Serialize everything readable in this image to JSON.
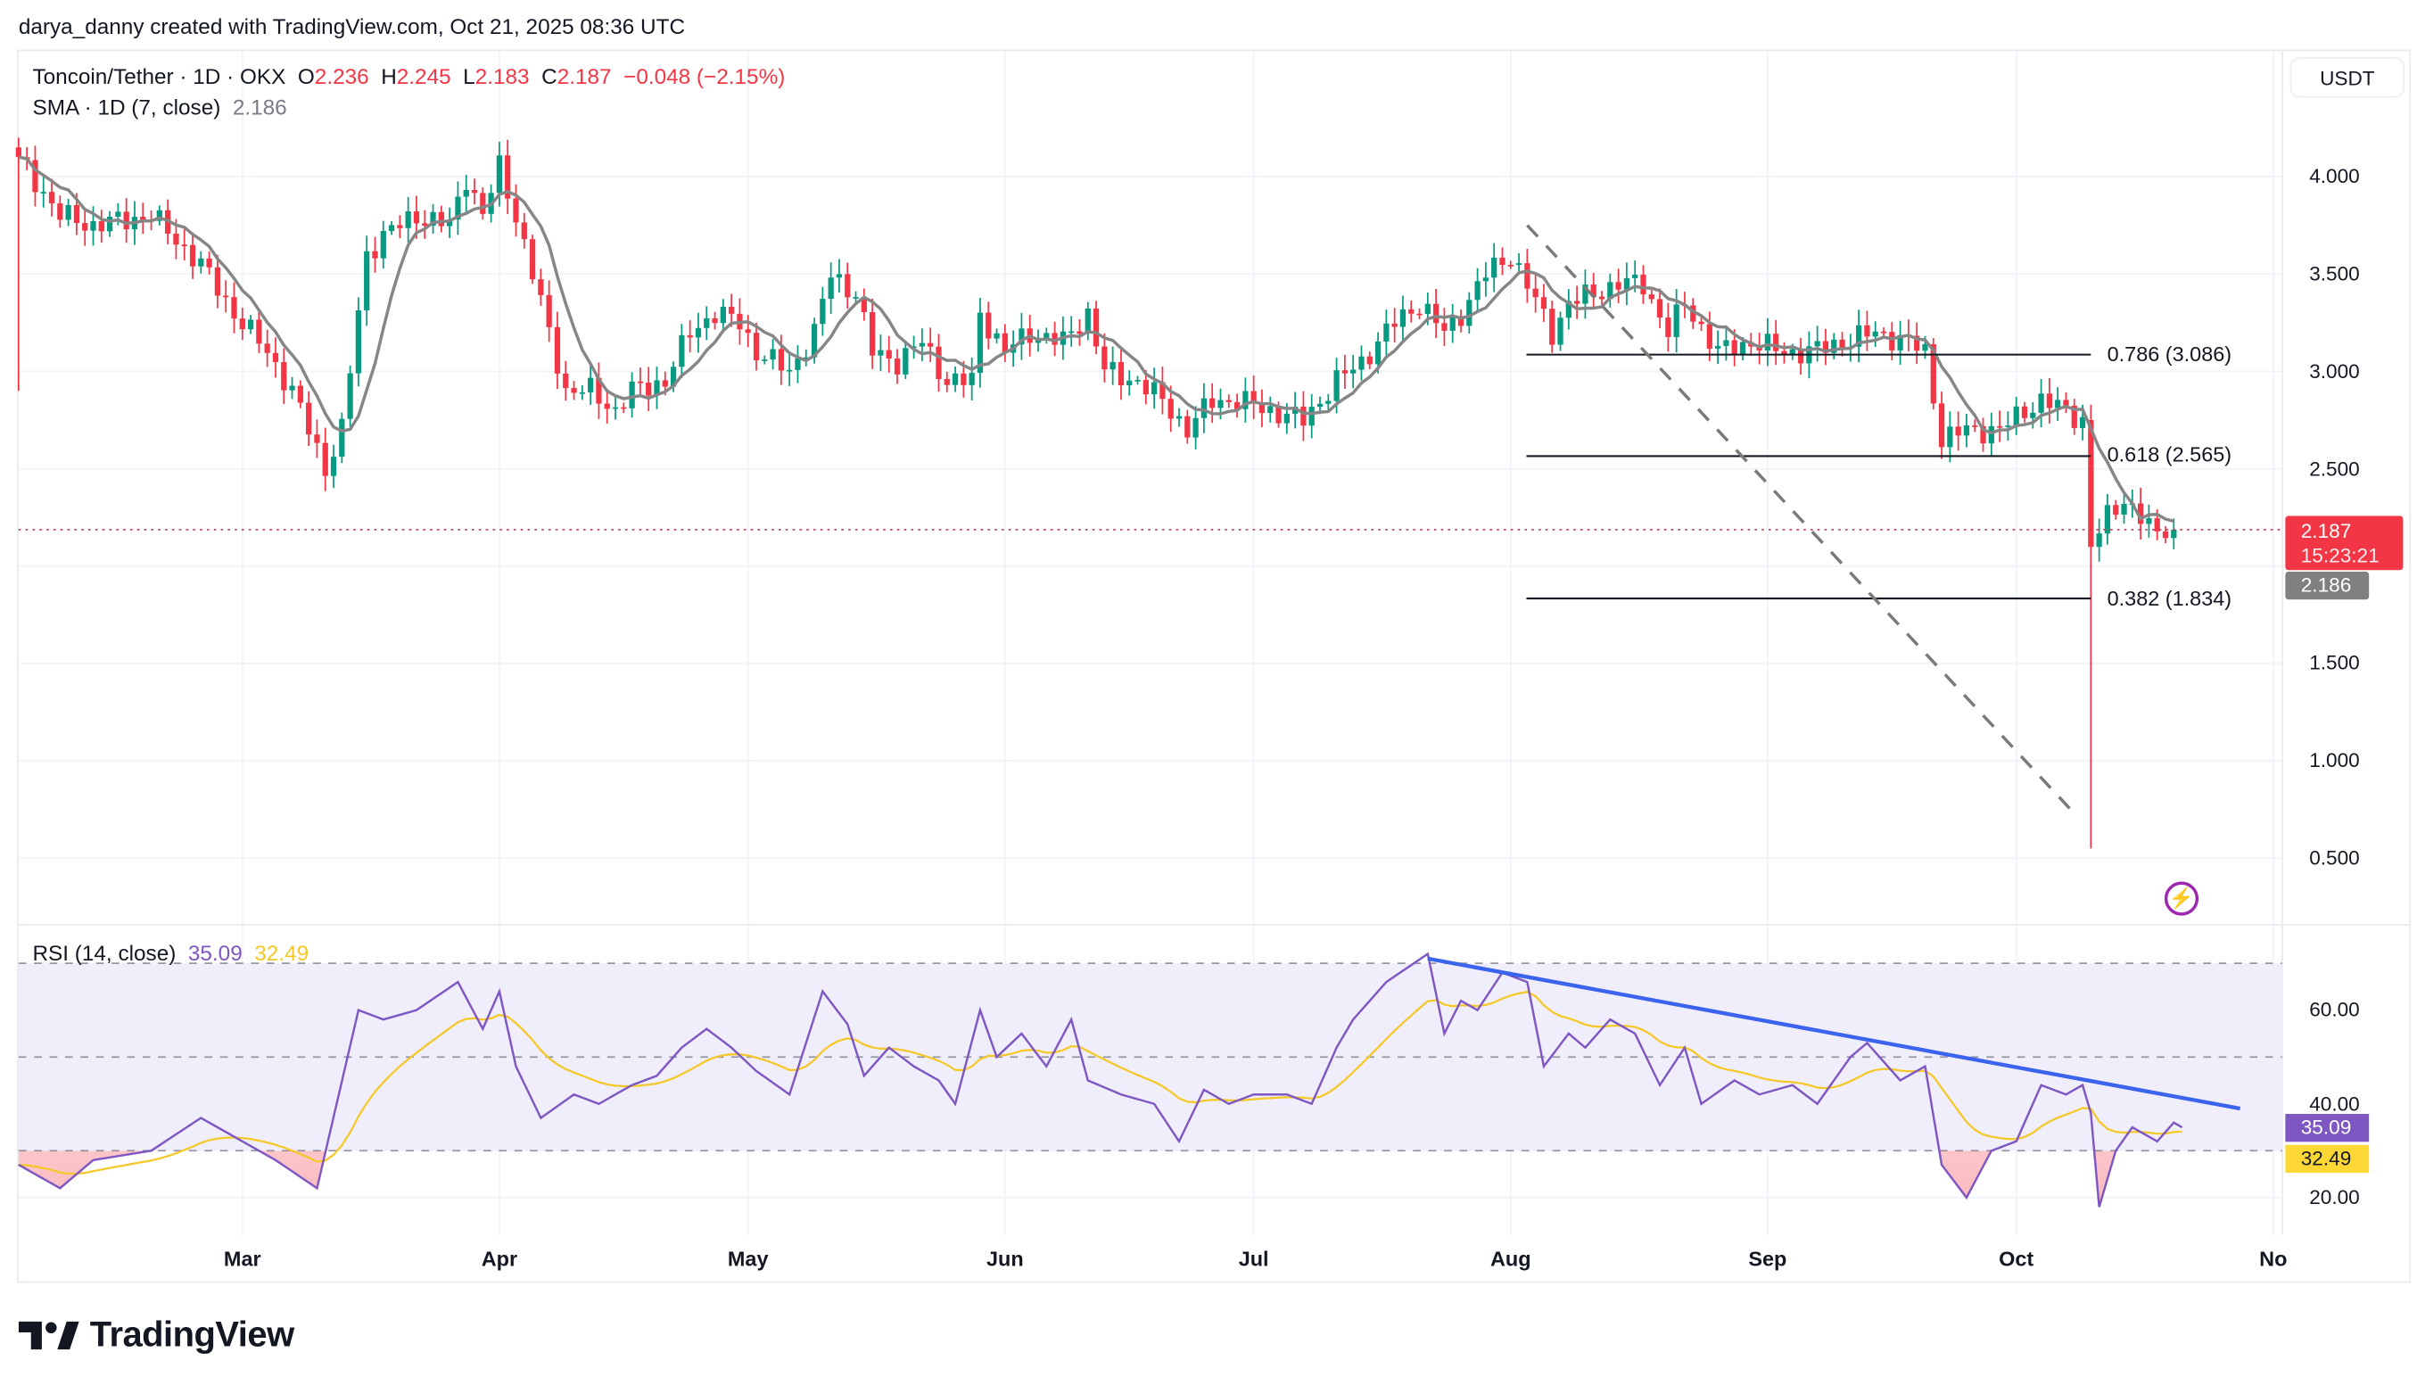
{
  "credit": "darya_danny created with TradingView.com, Oct 21, 2025 08:36 UTC",
  "legend": {
    "symbol": "Toncoin/Tether · 1D · OKX",
    "o_label": "O",
    "o": "2.236",
    "h_label": "H",
    "h": "2.245",
    "l_label": "L",
    "l": "2.183",
    "c_label": "C",
    "c": "2.187",
    "change": "−0.048 (−2.15%)",
    "sma_label": "SMA · 1D (7, close)",
    "sma_value": "2.186",
    "rsi_label": "RSI (14, close)",
    "rsi_value": "35.09",
    "rsi_ma_value": "32.49"
  },
  "currency_button": "USDT",
  "price_tag": {
    "price": "2.187",
    "countdown": "15:23:21",
    "sma": "2.186"
  },
  "rsi_tags": {
    "rsi": "35.09",
    "ma": "32.49"
  },
  "fib_labels": [
    "0.786 (3.086)",
    "0.618 (2.565)",
    "0.382 (1.834)"
  ],
  "logo_text": "TradingView",
  "colors": {
    "up": "#089981",
    "down": "#f23645",
    "sma": "#868686",
    "rsi": "#7e57c2",
    "rsi_ma": "#f5c828",
    "trend": "#3b63ee",
    "lightning": "#9c27b0"
  },
  "chart_data": [
    {
      "type": "candlestick",
      "title": "Toncoin/Tether · 1D · OKX",
      "x_unit": "days since Feb 2, 2025",
      "x_ticks": [
        {
          "label": "Mar",
          "day": 27
        },
        {
          "label": "Apr",
          "day": 58
        },
        {
          "label": "May",
          "day": 88
        },
        {
          "label": "Jun",
          "day": 119
        },
        {
          "label": "Jul",
          "day": 149
        },
        {
          "label": "Aug",
          "day": 180
        },
        {
          "label": "Sep",
          "day": 211
        },
        {
          "label": "Oct",
          "day": 241
        },
        {
          "label": "No",
          "day": 272
        }
      ],
      "y_ticks": [
        "4.000",
        "3.500",
        "3.000",
        "2.500",
        "1.500",
        "1.000",
        "0.500"
      ],
      "ylim": [
        0.5,
        4.0
      ],
      "close_keypoints": [
        [
          0,
          4.1
        ],
        [
          5,
          3.8
        ],
        [
          9,
          3.75
        ],
        [
          16,
          3.8
        ],
        [
          22,
          3.55
        ],
        [
          26,
          3.3
        ],
        [
          30,
          3.1
        ],
        [
          33,
          2.9
        ],
        [
          37,
          2.5
        ],
        [
          39,
          2.7
        ],
        [
          42,
          3.6
        ],
        [
          44,
          3.7
        ],
        [
          48,
          3.8
        ],
        [
          52,
          3.75
        ],
        [
          54,
          4.0
        ],
        [
          56,
          3.8
        ],
        [
          58,
          4.05
        ],
        [
          60,
          3.8
        ],
        [
          62,
          3.5
        ],
        [
          64,
          3.2
        ],
        [
          66,
          2.9
        ],
        [
          69,
          2.9
        ],
        [
          72,
          2.8
        ],
        [
          74,
          2.9
        ],
        [
          78,
          2.95
        ],
        [
          81,
          3.2
        ],
        [
          84,
          3.3
        ],
        [
          87,
          3.25
        ],
        [
          89,
          3.1
        ],
        [
          93,
          3.0
        ],
        [
          96,
          3.2
        ],
        [
          98,
          3.5
        ],
        [
          101,
          3.4
        ],
        [
          103,
          3.1
        ],
        [
          106,
          3.05
        ],
        [
          109,
          3.15
        ],
        [
          112,
          2.95
        ],
        [
          115,
          2.95
        ],
        [
          116,
          3.3
        ],
        [
          119,
          3.1
        ],
        [
          122,
          3.2
        ],
        [
          126,
          3.15
        ],
        [
          129,
          3.3
        ],
        [
          131,
          3.0
        ],
        [
          135,
          2.95
        ],
        [
          138,
          2.85
        ],
        [
          141,
          2.7
        ],
        [
          144,
          2.85
        ],
        [
          147,
          2.85
        ],
        [
          151,
          2.8
        ],
        [
          155,
          2.75
        ],
        [
          159,
          2.95
        ],
        [
          162,
          3.05
        ],
        [
          166,
          3.25
        ],
        [
          169,
          3.35
        ],
        [
          172,
          3.2
        ],
        [
          174,
          3.3
        ],
        [
          177,
          3.5
        ],
        [
          180,
          3.6
        ],
        [
          185,
          3.2
        ],
        [
          187,
          3.35
        ],
        [
          190,
          3.4
        ],
        [
          193,
          3.45
        ],
        [
          196,
          3.45
        ],
        [
          199,
          3.2
        ],
        [
          201,
          3.35
        ],
        [
          205,
          3.1
        ],
        [
          209,
          3.15
        ],
        [
          213,
          3.1
        ],
        [
          216,
          3.1
        ],
        [
          220,
          3.15
        ],
        [
          224,
          3.2
        ],
        [
          228,
          3.15
        ],
        [
          230,
          3.1
        ],
        [
          232,
          2.65
        ],
        [
          235,
          2.7
        ],
        [
          239,
          2.7
        ],
        [
          242,
          2.8
        ],
        [
          244,
          2.85
        ],
        [
          247,
          2.8
        ],
        [
          249,
          2.75
        ],
        [
          250,
          2.1
        ],
        [
          252,
          2.25
        ],
        [
          254,
          2.35
        ],
        [
          256,
          2.25
        ],
        [
          258,
          2.15
        ],
        [
          259,
          2.2
        ],
        [
          260,
          2.187
        ]
      ],
      "special_lows": [
        [
          0,
          2.9
        ],
        [
          250,
          0.55
        ]
      ],
      "special_highs": [
        [
          0,
          4.2
        ]
      ],
      "fib_levels": [
        {
          "ratio": 0.786,
          "price": 3.086
        },
        {
          "ratio": 0.618,
          "price": 2.565
        },
        {
          "ratio": 0.382,
          "price": 1.834
        }
      ],
      "fib_range_days": [
        182,
        250
      ],
      "diagonal_dashed_line": [
        [
          182,
          3.75
        ],
        [
          248,
          0.73
        ]
      ],
      "last_price": 2.187,
      "sma_period": 7
    },
    {
      "type": "line",
      "title": "RSI (14, close)",
      "ylim": [
        15,
        72
      ],
      "y_ticks": [
        "60.00",
        "40.00",
        "20.00"
      ],
      "bands": [
        70,
        50,
        30
      ],
      "rsi_keypoints": [
        [
          0,
          27
        ],
        [
          5,
          22
        ],
        [
          9,
          28
        ],
        [
          16,
          30
        ],
        [
          22,
          37
        ],
        [
          26,
          33
        ],
        [
          31,
          28
        ],
        [
          36,
          22
        ],
        [
          41,
          60
        ],
        [
          44,
          58
        ],
        [
          48,
          60
        ],
        [
          53,
          66
        ],
        [
          56,
          56
        ],
        [
          58,
          64
        ],
        [
          60,
          48
        ],
        [
          63,
          37
        ],
        [
          67,
          42
        ],
        [
          70,
          40
        ],
        [
          74,
          44
        ],
        [
          77,
          46
        ],
        [
          80,
          52
        ],
        [
          83,
          56
        ],
        [
          86,
          52
        ],
        [
          89,
          47
        ],
        [
          93,
          42
        ],
        [
          97,
          64
        ],
        [
          100,
          57
        ],
        [
          102,
          46
        ],
        [
          105,
          52
        ],
        [
          108,
          48
        ],
        [
          111,
          45
        ],
        [
          113,
          40
        ],
        [
          116,
          60
        ],
        [
          118,
          50
        ],
        [
          121,
          55
        ],
        [
          124,
          48
        ],
        [
          127,
          58
        ],
        [
          129,
          45
        ],
        [
          133,
          42
        ],
        [
          137,
          40
        ],
        [
          140,
          32
        ],
        [
          143,
          43
        ],
        [
          146,
          40
        ],
        [
          149,
          42
        ],
        [
          153,
          42
        ],
        [
          156,
          40
        ],
        [
          159,
          52
        ],
        [
          161,
          58
        ],
        [
          165,
          66
        ],
        [
          170,
          72
        ],
        [
          172,
          55
        ],
        [
          174,
          62
        ],
        [
          176,
          60
        ],
        [
          179,
          68
        ],
        [
          182,
          66
        ],
        [
          184,
          48
        ],
        [
          187,
          55
        ],
        [
          189,
          52
        ],
        [
          192,
          58
        ],
        [
          195,
          55
        ],
        [
          198,
          44
        ],
        [
          201,
          52
        ],
        [
          203,
          40
        ],
        [
          207,
          45
        ],
        [
          210,
          42
        ],
        [
          214,
          44
        ],
        [
          217,
          40
        ],
        [
          221,
          50
        ],
        [
          223,
          53
        ],
        [
          227,
          45
        ],
        [
          230,
          48
        ],
        [
          232,
          27
        ],
        [
          235,
          20
        ],
        [
          238,
          30
        ],
        [
          241,
          32
        ],
        [
          244,
          44
        ],
        [
          247,
          42
        ],
        [
          249,
          44
        ],
        [
          250,
          38
        ],
        [
          251,
          18
        ],
        [
          253,
          30
        ],
        [
          255,
          35
        ],
        [
          258,
          32
        ],
        [
          260,
          36
        ],
        [
          261,
          35
        ]
      ],
      "trendline": [
        [
          170,
          71
        ],
        [
          268,
          39
        ]
      ],
      "last_rsi": 35.09,
      "last_ma": 32.49
    }
  ]
}
